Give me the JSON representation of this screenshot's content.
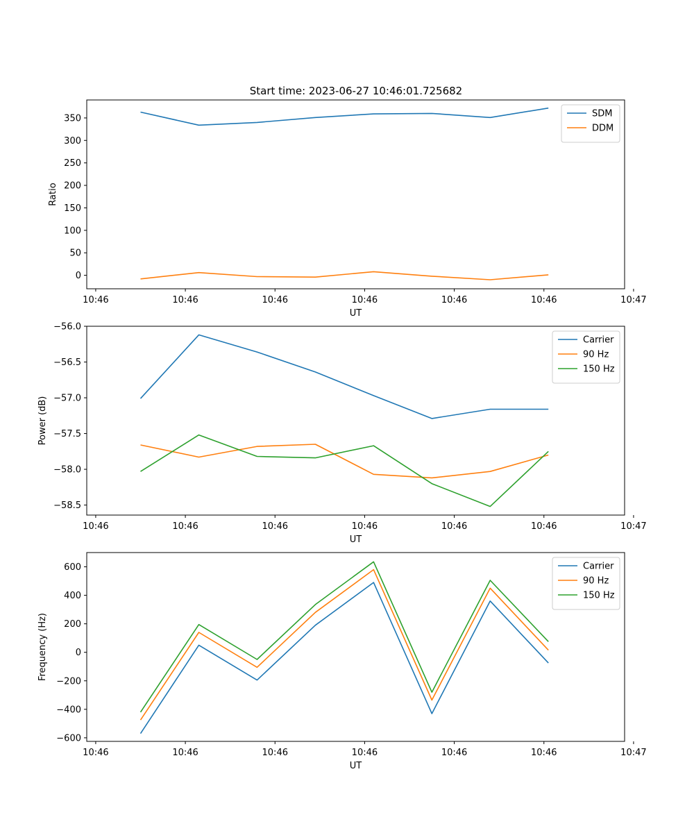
{
  "figure": {
    "title": "Start time: 2023-06-27 10:46:01.725682"
  },
  "chart_data": [
    {
      "type": "line",
      "title": "Start time: 2023-06-27 10:46:01.725682",
      "xlabel": "UT",
      "ylabel": "Ratio",
      "x": [
        0.5,
        1.15,
        1.8,
        2.45,
        3.1,
        3.75,
        4.4,
        5.05
      ],
      "xlim": [
        -0.1,
        5.9
      ],
      "ylim": [
        -30,
        390
      ],
      "xticks": [
        0,
        1,
        2,
        3,
        4,
        5,
        6
      ],
      "xticklabels": [
        "10:46",
        "10:46",
        "10:46",
        "10:46",
        "10:46",
        "10:46",
        "10:47"
      ],
      "yticks": [
        0,
        50,
        100,
        150,
        200,
        250,
        300,
        350
      ],
      "yticklabels": [
        "0",
        "50",
        "100",
        "150",
        "200",
        "250",
        "300",
        "350"
      ],
      "grid": false,
      "legend_position": "top-right",
      "series": [
        {
          "name": "SDM",
          "color": "#1f77b4",
          "values": [
            363,
            334,
            340,
            351,
            359,
            360,
            351,
            372
          ]
        },
        {
          "name": "DDM",
          "color": "#ff7f0e",
          "values": [
            -8,
            6,
            -3,
            -4,
            8,
            -2,
            -10,
            1
          ]
        }
      ]
    },
    {
      "type": "line",
      "xlabel": "UT",
      "ylabel": "Power (dB)",
      "x": [
        0.5,
        1.15,
        1.8,
        2.45,
        3.1,
        3.75,
        4.4,
        5.05
      ],
      "xlim": [
        -0.1,
        5.9
      ],
      "ylim": [
        -58.64,
        -56.0
      ],
      "xticks": [
        0,
        1,
        2,
        3,
        4,
        5,
        6
      ],
      "xticklabels": [
        "10:46",
        "10:46",
        "10:46",
        "10:46",
        "10:46",
        "10:46",
        "10:47"
      ],
      "yticks": [
        -58.5,
        -58.0,
        -57.5,
        -57.0,
        -56.5,
        -56.0
      ],
      "yticklabels": [
        "−58.5",
        "−58.0",
        "−57.5",
        "−57.0",
        "−56.5",
        "−56.0"
      ],
      "grid": false,
      "legend_position": "top-right",
      "series": [
        {
          "name": "Carrier",
          "color": "#1f77b4",
          "values": [
            -57.01,
            -56.12,
            -56.36,
            -56.64,
            -56.97,
            -57.29,
            -57.16,
            -57.16
          ]
        },
        {
          "name": "90 Hz",
          "color": "#ff7f0e",
          "values": [
            -57.66,
            -57.83,
            -57.68,
            -57.65,
            -58.07,
            -58.12,
            -58.03,
            -57.8
          ]
        },
        {
          "name": "150 Hz",
          "color": "#2ca02c",
          "values": [
            -58.03,
            -57.52,
            -57.82,
            -57.84,
            -57.67,
            -58.2,
            -58.52,
            -57.75
          ]
        }
      ]
    },
    {
      "type": "line",
      "xlabel": "UT",
      "ylabel": "Frequency (Hz)",
      "x": [
        0.5,
        1.15,
        1.8,
        2.45,
        3.1,
        3.75,
        4.4,
        5.05
      ],
      "xlim": [
        -0.1,
        5.9
      ],
      "ylim": [
        -625,
        700
      ],
      "xticks": [
        0,
        1,
        2,
        3,
        4,
        5,
        6
      ],
      "xticklabels": [
        "10:46",
        "10:46",
        "10:46",
        "10:46",
        "10:46",
        "10:46",
        "10:47"
      ],
      "yticks": [
        -600,
        -400,
        -200,
        0,
        200,
        400,
        600
      ],
      "yticklabels": [
        "−600",
        "−400",
        "−200",
        "0",
        "200",
        "400",
        "600"
      ],
      "grid": false,
      "legend_position": "top-right",
      "series": [
        {
          "name": "Carrier",
          "color": "#1f77b4",
          "values": [
            -570,
            50,
            -195,
            190,
            490,
            -430,
            360,
            -75
          ]
        },
        {
          "name": "90 Hz",
          "color": "#ff7f0e",
          "values": [
            -475,
            140,
            -105,
            280,
            580,
            -335,
            450,
            15
          ]
        },
        {
          "name": "150 Hz",
          "color": "#2ca02c",
          "values": [
            -420,
            195,
            -50,
            335,
            635,
            -280,
            505,
            75
          ]
        }
      ]
    }
  ]
}
